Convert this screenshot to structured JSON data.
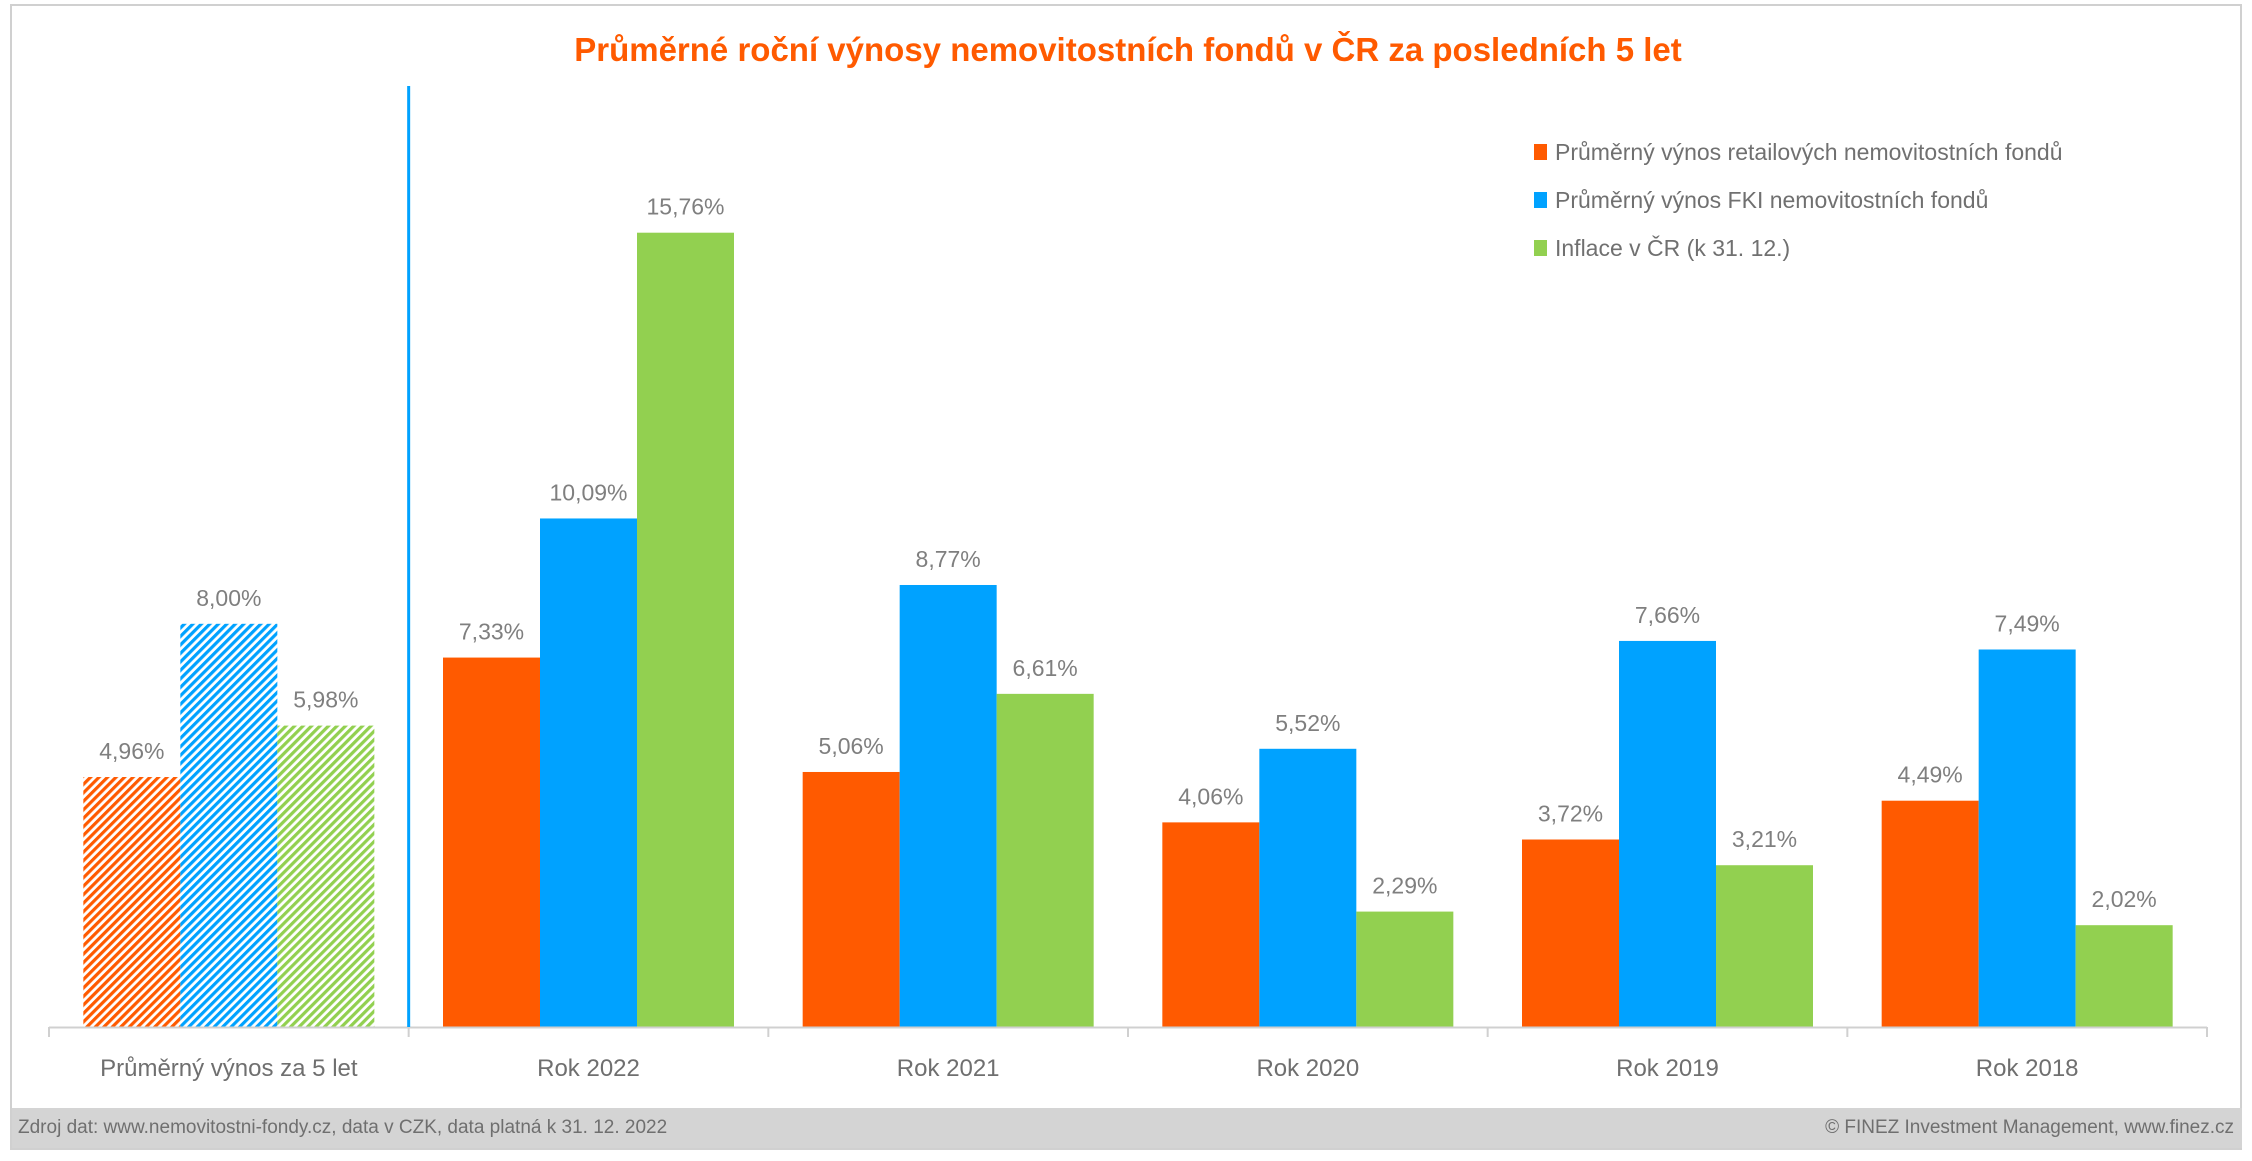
{
  "chart_data": {
    "type": "bar",
    "title": "Průměrné roční výnosy nemovitostních fondů v ČR za posledních 5 let",
    "xlabel": "",
    "ylabel": "",
    "ylim": [
      0,
      16
    ],
    "grid": false,
    "legend_position": "top-right",
    "categories": [
      "Průměrný výnos za 5 let",
      "Rok 2022",
      "Rok 2021",
      "Rok 2020",
      "Rok 2019",
      "Rok 2018"
    ],
    "series": [
      {
        "name": "Průměrný výnos retailových nemovitostních fondů",
        "color": "#ff5a00",
        "values": [
          4.96,
          7.33,
          5.06,
          4.06,
          3.72,
          4.49
        ],
        "labels": [
          "4,96%",
          "7,33%",
          "5,06%",
          "4,06%",
          "3,72%",
          "4,49%"
        ]
      },
      {
        "name": "Průměrný výnos FKI nemovitostních fondů",
        "color": "#00a2ff",
        "values": [
          8.0,
          10.09,
          8.77,
          5.52,
          7.66,
          7.49
        ],
        "labels": [
          "8,00%",
          "10,09%",
          "8,77%",
          "5,52%",
          "7,66%",
          "7,49%"
        ]
      },
      {
        "name": "Inflace v ČR (k 31. 12.)",
        "color": "#92d050",
        "values": [
          5.98,
          15.76,
          6.61,
          2.29,
          3.21,
          2.02
        ],
        "labels": [
          "5,98%",
          "15,76%",
          "6,61%",
          "2,29%",
          "3,21%",
          "2,02%"
        ]
      }
    ],
    "hatched_categories": [
      0
    ],
    "separator_color": "#00a2ff"
  },
  "footer": {
    "source": "Zdroj dat: www.nemovitostni-fondy.cz, data v CZK, data platná k 31. 12. 2022",
    "copyright": "© FINEZ Investment Management, www.finez.cz"
  }
}
